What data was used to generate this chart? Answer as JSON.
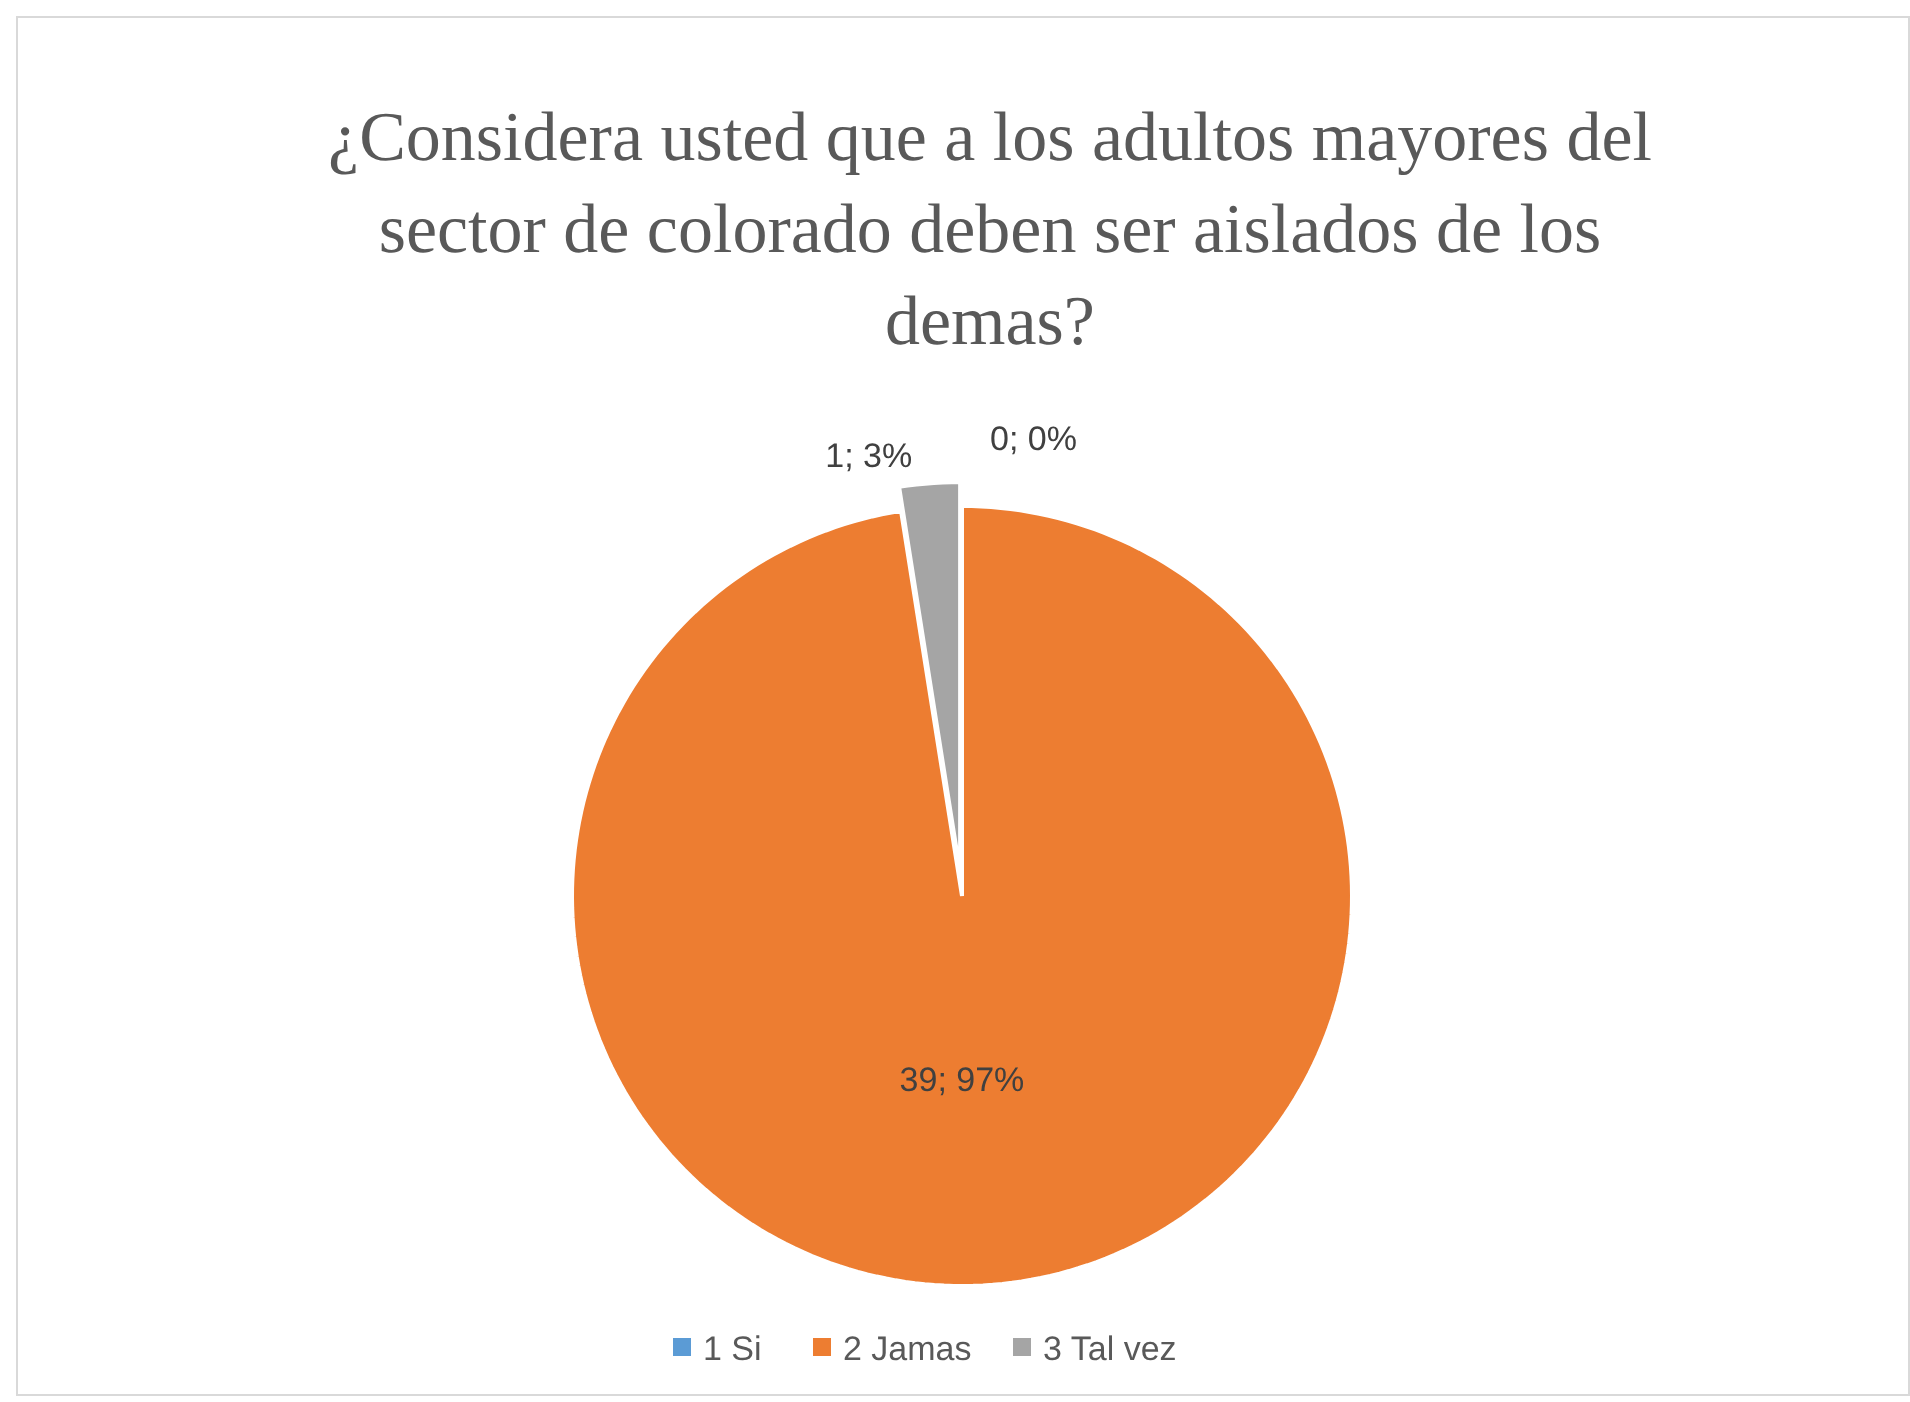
{
  "chart_data": {
    "type": "pie",
    "title": "¿Considera usted que a los adultos mayores del sector de colorado deben ser aislados de los demas?",
    "categories": [
      "1 Si",
      "2 Jamas",
      "3 Tal vez"
    ],
    "values": [
      0,
      39,
      1
    ],
    "colors": [
      "#5b9bd5",
      "#ed7d31",
      "#a5a5a5"
    ],
    "value_labels": [
      "0; 0%",
      "39; 97%",
      "1; 3%"
    ],
    "legend": "bottom"
  }
}
